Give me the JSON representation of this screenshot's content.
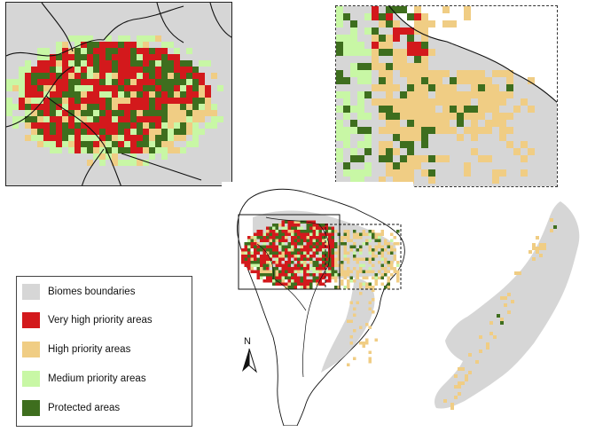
{
  "colors": {
    "biome": "#d6d6d6",
    "very_high": "#d3191c",
    "high": "#f0cd84",
    "medium": "#c8f7a5",
    "protected": "#3e6e1e",
    "border": "#111111"
  },
  "legend": {
    "items": [
      {
        "label": "Biomes boundaries",
        "color_key": "biome"
      },
      {
        "label": "Very high priority areas",
        "color_key": "very_high"
      },
      {
        "label": "High priority areas",
        "color_key": "high"
      },
      {
        "label": "Medium priority areas",
        "color_key": "medium"
      },
      {
        "label": "Protected areas",
        "color_key": "protected"
      }
    ]
  },
  "north_arrow": {
    "label": "N",
    "icon": "north-arrow-icon"
  },
  "panels": {
    "inset_west": {
      "description_icon": "western-amazon-inset"
    },
    "inset_east": {
      "description_icon": "eastern-amazon-inset"
    },
    "main_map": {
      "description_icon": "south-america-map"
    },
    "atlantic_forest": {
      "description_icon": "atlantic-forest-map"
    }
  }
}
